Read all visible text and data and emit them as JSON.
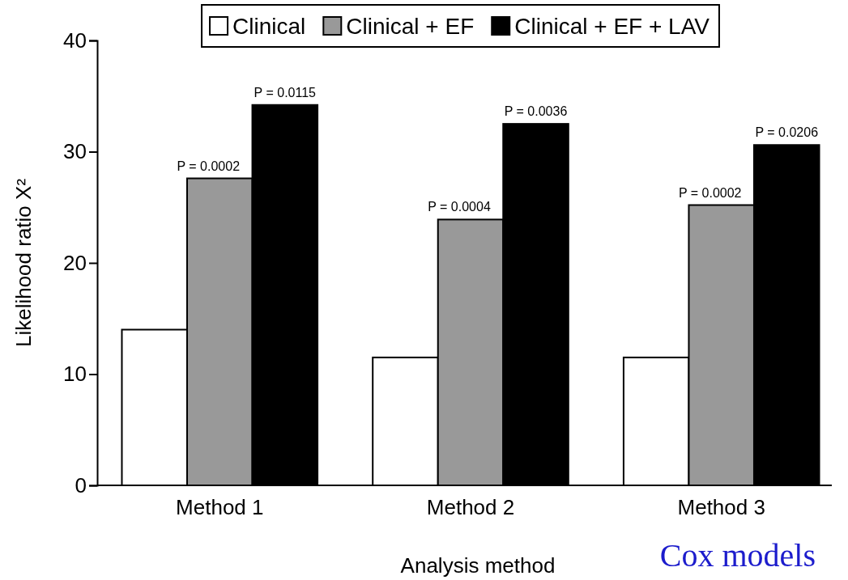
{
  "chart_data": {
    "type": "bar",
    "xlabel": "Analysis method",
    "ylabel": "Likelihood ratio X²",
    "categories": [
      "Method 1",
      "Method 2",
      "Method 3"
    ],
    "series": [
      {
        "name": "Clinical",
        "color": "#ffffff",
        "values": [
          14.0,
          11.5,
          11.5
        ]
      },
      {
        "name": "Clinical + EF",
        "color": "#999999",
        "values": [
          27.6,
          23.9,
          25.2
        ]
      },
      {
        "name": "Clinical + EF + LAV",
        "color": "#000000",
        "values": [
          34.2,
          32.5,
          30.6
        ]
      }
    ],
    "ylim": [
      0,
      40
    ],
    "yticks": [
      0,
      10,
      20,
      30,
      40
    ],
    "grid": false,
    "legend": "top",
    "annotations": [
      "P = 0.0002",
      "P = 0.0115",
      "P = 0.0004",
      "P = 0.0036",
      "P = 0.0002",
      "P = 0.0206",
      "Cox models"
    ]
  }
}
